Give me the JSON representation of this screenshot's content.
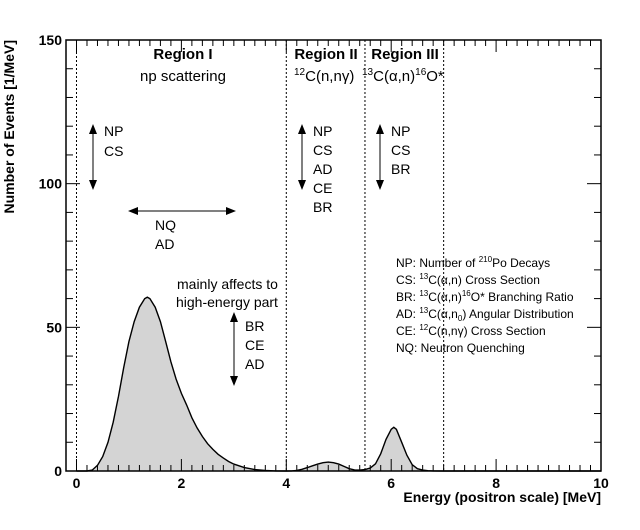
{
  "chart_data": {
    "type": "area",
    "title": "",
    "xlabel": "Energy (positron scale) [MeV]",
    "ylabel": "Number of Events [1/MeV]",
    "xlim": [
      -0.2,
      10
    ],
    "ylim": [
      0,
      150
    ],
    "x_ticks": [
      "0",
      "2",
      "4",
      "6",
      "8",
      "10"
    ],
    "y_ticks": [
      "0",
      "50",
      "100",
      "150"
    ],
    "grid": false,
    "fill_color": "#d4d4d4",
    "line_color": "#000000",
    "series": [
      {
        "x": [
          0.0,
          0.2,
          0.3,
          0.4,
          0.5,
          0.6,
          0.7,
          0.8,
          0.9,
          1.0,
          1.1,
          1.2,
          1.3,
          1.35,
          1.4,
          1.5,
          1.6,
          1.7,
          1.8,
          1.9,
          2.0,
          2.1,
          2.2,
          2.3,
          2.4,
          2.5,
          2.6,
          2.7,
          2.8,
          2.9,
          3.0,
          3.2,
          3.4,
          3.6,
          3.8,
          4.0,
          4.1,
          4.2,
          4.3,
          4.4,
          4.5,
          4.6,
          4.7,
          4.8,
          4.9,
          5.0,
          5.1,
          5.2,
          5.3,
          5.4,
          5.5,
          5.6,
          5.7,
          5.8,
          5.9,
          6.0,
          6.05,
          6.1,
          6.2,
          6.3,
          6.4,
          6.5,
          6.6,
          6.7,
          6.8,
          7.0,
          8.0,
          10.0
        ],
        "y": [
          0,
          0,
          0.3,
          2,
          5,
          10,
          17,
          26,
          36,
          45,
          52,
          57,
          60,
          60.5,
          60,
          57,
          52,
          45,
          38,
          32,
          27,
          23,
          18.5,
          15,
          12,
          9.5,
          7.5,
          5.8,
          4.5,
          3.3,
          2.4,
          1.2,
          0.5,
          0.2,
          0.05,
          0,
          0.05,
          0.2,
          0.6,
          1.2,
          1.8,
          2.4,
          2.9,
          3.1,
          2.9,
          2.4,
          1.6,
          0.8,
          0.4,
          0.3,
          0.5,
          1,
          2.5,
          6,
          11,
          14.5,
          15.2,
          14.5,
          10,
          5.5,
          2.2,
          0.8,
          0.3,
          0.1,
          0.05,
          0,
          0,
          0
        ]
      }
    ],
    "vlines": [
      0,
      4,
      5.5,
      7
    ]
  },
  "annotations": {
    "region1_title": "Region I",
    "region1_sub": "np scattering",
    "region2_title": "Region II",
    "region2_sub_pre": "C(n,n",
    "region2_sup": "12",
    "region2_greek": "γ",
    "region3_title": "Region III",
    "region3_sup1": "13",
    "region3_mid": "C(",
    "region3_alpha": "α",
    "region3_mid2": ",n)",
    "region3_sup2": "16",
    "region3_end": "O*",
    "r1_np": "NP",
    "r1_cs": "CS",
    "nq": "NQ",
    "ad": "AD",
    "mainly1": "mainly affects to",
    "mainly2": "high-energy part",
    "br_lo": "BR",
    "ce_lo": "CE",
    "ad_lo": "AD",
    "r2_np": "NP",
    "r2_cs": "CS",
    "r2_ad": "AD",
    "r2_ce": "CE",
    "r2_br": "BR",
    "r3_np": "NP",
    "r3_cs": "CS",
    "r3_br": "BR"
  },
  "legend": {
    "np": {
      "pre": "NP: Number of ",
      "sup": "210",
      "post": "Po Decays"
    },
    "cs": {
      "pre": "CS: ",
      "sup": "13",
      "post": "C(α,n) Cross Section"
    },
    "br": {
      "pre": "BR: ",
      "sup": "13",
      "mid": "C(α,n)",
      "sup2": "16",
      "post": "O* Branching Ratio"
    },
    "ad": {
      "pre": "AD: ",
      "sup": "13",
      "mid": "C(α,n",
      "sub": "0",
      "post": ") Angular Distribution"
    },
    "ce": {
      "pre": "CE: ",
      "sup": "12",
      "post": "C(n,nγ) Cross Section"
    },
    "nq": {
      "pre": "NQ: Neutron Quenching"
    }
  }
}
